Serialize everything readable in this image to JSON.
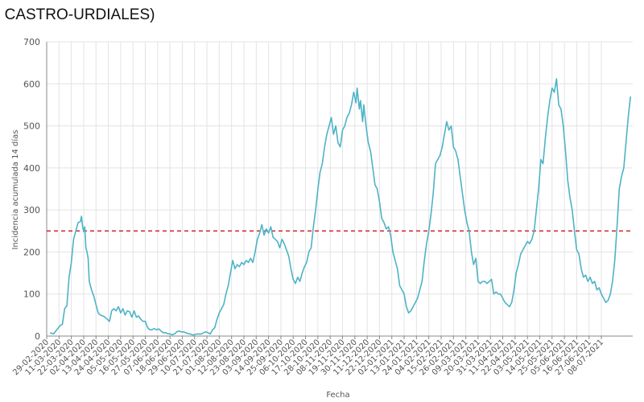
{
  "chart_data": {
    "type": "line",
    "title": "- CASTRO-URDIALES)",
    "xlabel": "Fecha",
    "ylabel": "Incidencia acumulada 14 días",
    "ylim": [
      0,
      700
    ],
    "yticks": [
      "0",
      "100",
      "200",
      "300",
      "400",
      "500",
      "600",
      "700"
    ],
    "grid": true,
    "colors": {
      "line": "#4db3c6",
      "threshold": "#d62728",
      "grid": "#e3e3e3",
      "axis": "#888888"
    },
    "threshold": {
      "value": 250,
      "style": "dashed"
    },
    "x_tick_labels": [
      "29-02-2020",
      "11-03-2020",
      "22-03-2020",
      "02-04-2020",
      "13-04-2020",
      "24-04-2020",
      "05-05-2020",
      "16-05-2020",
      "27-05-2020",
      "07-06-2020",
      "18-06-2020",
      "29-06-2020",
      "10-07-2020",
      "21-07-2020",
      "01-08-2020",
      "12-08-2020",
      "23-08-2020",
      "03-09-2020",
      "14-09-2020",
      "25-09-2020",
      "06-10-2020",
      "17-10-2020",
      "28-10-2020",
      "08-11-2020",
      "19-11-2020",
      "30-11-2020",
      "11-12-2020",
      "22-12-2020",
      "02-01-2021",
      "13-01-2021",
      "24-01-2021",
      "04-02-2021",
      "15-02-2021",
      "26-02-2021",
      "09-03-2021",
      "20-03-2021",
      "31-03-2021",
      "11-04-2021",
      "22-04-2021",
      "03-05-2021",
      "14-05-2021",
      "25-05-2021",
      "05-06-2021",
      "16-06-2021",
      "27-06-2021",
      "08-07-2021"
    ],
    "series": [
      {
        "points": [
          [
            "2020-03-03",
            8
          ],
          [
            "2020-03-06",
            5
          ],
          [
            "2020-03-09",
            15
          ],
          [
            "2020-03-12",
            25
          ],
          [
            "2020-03-14",
            28
          ],
          [
            "2020-03-16",
            65
          ],
          [
            "2020-03-18",
            72
          ],
          [
            "2020-03-20",
            140
          ],
          [
            "2020-03-22",
            175
          ],
          [
            "2020-03-24",
            230
          ],
          [
            "2020-03-26",
            250
          ],
          [
            "2020-03-28",
            270
          ],
          [
            "2020-03-30",
            272
          ],
          [
            "2020-03-31",
            285
          ],
          [
            "2020-04-01",
            262
          ],
          [
            "2020-04-02",
            248
          ],
          [
            "2020-04-03",
            260
          ],
          [
            "2020-04-04",
            210
          ],
          [
            "2020-04-05",
            200
          ],
          [
            "2020-04-06",
            185
          ],
          [
            "2020-04-07",
            130
          ],
          [
            "2020-04-09",
            110
          ],
          [
            "2020-04-11",
            95
          ],
          [
            "2020-04-13",
            75
          ],
          [
            "2020-04-15",
            55
          ],
          [
            "2020-04-17",
            50
          ],
          [
            "2020-04-19",
            48
          ],
          [
            "2020-04-21",
            45
          ],
          [
            "2020-04-23",
            40
          ],
          [
            "2020-04-25",
            35
          ],
          [
            "2020-04-27",
            60
          ],
          [
            "2020-04-29",
            65
          ],
          [
            "2020-05-01",
            60
          ],
          [
            "2020-05-03",
            70
          ],
          [
            "2020-05-05",
            55
          ],
          [
            "2020-05-07",
            65
          ],
          [
            "2020-05-09",
            50
          ],
          [
            "2020-05-11",
            60
          ],
          [
            "2020-05-13",
            58
          ],
          [
            "2020-05-15",
            45
          ],
          [
            "2020-05-17",
            60
          ],
          [
            "2020-05-19",
            45
          ],
          [
            "2020-05-21",
            48
          ],
          [
            "2020-05-23",
            40
          ],
          [
            "2020-05-25",
            35
          ],
          [
            "2020-05-27",
            35
          ],
          [
            "2020-05-29",
            20
          ],
          [
            "2020-05-31",
            15
          ],
          [
            "2020-06-02",
            15
          ],
          [
            "2020-06-04",
            18
          ],
          [
            "2020-06-06",
            15
          ],
          [
            "2020-06-08",
            17
          ],
          [
            "2020-06-10",
            12
          ],
          [
            "2020-06-12",
            8
          ],
          [
            "2020-06-14",
            8
          ],
          [
            "2020-06-16",
            6
          ],
          [
            "2020-06-18",
            5
          ],
          [
            "2020-06-20",
            3
          ],
          [
            "2020-06-22",
            5
          ],
          [
            "2020-06-24",
            10
          ],
          [
            "2020-06-26",
            12
          ],
          [
            "2020-06-28",
            10
          ],
          [
            "2020-06-30",
            10
          ],
          [
            "2020-07-02",
            8
          ],
          [
            "2020-07-04",
            6
          ],
          [
            "2020-07-06",
            5
          ],
          [
            "2020-07-08",
            3
          ],
          [
            "2020-07-10",
            3
          ],
          [
            "2020-07-12",
            5
          ],
          [
            "2020-07-14",
            5
          ],
          [
            "2020-07-16",
            5
          ],
          [
            "2020-07-18",
            8
          ],
          [
            "2020-07-20",
            10
          ],
          [
            "2020-07-22",
            8
          ],
          [
            "2020-07-24",
            5
          ],
          [
            "2020-07-26",
            15
          ],
          [
            "2020-07-28",
            20
          ],
          [
            "2020-07-30",
            40
          ],
          [
            "2020-08-01",
            55
          ],
          [
            "2020-08-03",
            65
          ],
          [
            "2020-08-05",
            75
          ],
          [
            "2020-08-07",
            100
          ],
          [
            "2020-08-09",
            120
          ],
          [
            "2020-08-11",
            150
          ],
          [
            "2020-08-13",
            180
          ],
          [
            "2020-08-15",
            160
          ],
          [
            "2020-08-17",
            170
          ],
          [
            "2020-08-19",
            165
          ],
          [
            "2020-08-21",
            175
          ],
          [
            "2020-08-23",
            170
          ],
          [
            "2020-08-25",
            180
          ],
          [
            "2020-08-27",
            175
          ],
          [
            "2020-08-29",
            185
          ],
          [
            "2020-08-31",
            175
          ],
          [
            "2020-09-02",
            200
          ],
          [
            "2020-09-04",
            230
          ],
          [
            "2020-09-06",
            245
          ],
          [
            "2020-09-08",
            265
          ],
          [
            "2020-09-10",
            240
          ],
          [
            "2020-09-12",
            255
          ],
          [
            "2020-09-14",
            245
          ],
          [
            "2020-09-16",
            260
          ],
          [
            "2020-09-18",
            235
          ],
          [
            "2020-09-20",
            230
          ],
          [
            "2020-09-22",
            225
          ],
          [
            "2020-09-24",
            210
          ],
          [
            "2020-09-26",
            230
          ],
          [
            "2020-09-28",
            220
          ],
          [
            "2020-09-30",
            205
          ],
          [
            "2020-10-02",
            190
          ],
          [
            "2020-10-04",
            160
          ],
          [
            "2020-10-06",
            135
          ],
          [
            "2020-10-08",
            125
          ],
          [
            "2020-10-10",
            140
          ],
          [
            "2020-10-12",
            130
          ],
          [
            "2020-10-14",
            150
          ],
          [
            "2020-10-16",
            165
          ],
          [
            "2020-10-18",
            175
          ],
          [
            "2020-10-20",
            200
          ],
          [
            "2020-10-22",
            210
          ],
          [
            "2020-10-24",
            260
          ],
          [
            "2020-10-26",
            300
          ],
          [
            "2020-10-28",
            350
          ],
          [
            "2020-10-30",
            390
          ],
          [
            "2020-11-01",
            410
          ],
          [
            "2020-11-03",
            450
          ],
          [
            "2020-11-05",
            480
          ],
          [
            "2020-11-07",
            500
          ],
          [
            "2020-11-09",
            520
          ],
          [
            "2020-11-11",
            480
          ],
          [
            "2020-11-13",
            500
          ],
          [
            "2020-11-15",
            460
          ],
          [
            "2020-11-17",
            450
          ],
          [
            "2020-11-19",
            490
          ],
          [
            "2020-11-21",
            500
          ],
          [
            "2020-11-23",
            520
          ],
          [
            "2020-11-25",
            530
          ],
          [
            "2020-11-27",
            550
          ],
          [
            "2020-11-29",
            580
          ],
          [
            "2020-12-01",
            555
          ],
          [
            "2020-12-02",
            590
          ],
          [
            "2020-12-04",
            540
          ],
          [
            "2020-12-05",
            560
          ],
          [
            "2020-12-07",
            510
          ],
          [
            "2020-12-08",
            550
          ],
          [
            "2020-12-10",
            500
          ],
          [
            "2020-12-12",
            460
          ],
          [
            "2020-12-14",
            440
          ],
          [
            "2020-12-16",
            400
          ],
          [
            "2020-12-18",
            360
          ],
          [
            "2020-12-20",
            350
          ],
          [
            "2020-12-22",
            320
          ],
          [
            "2020-12-24",
            280
          ],
          [
            "2020-12-26",
            270
          ],
          [
            "2020-12-28",
            255
          ],
          [
            "2020-12-30",
            260
          ],
          [
            "2021-01-01",
            240
          ],
          [
            "2021-01-03",
            200
          ],
          [
            "2021-01-05",
            180
          ],
          [
            "2021-01-07",
            160
          ],
          [
            "2021-01-09",
            120
          ],
          [
            "2021-01-11",
            110
          ],
          [
            "2021-01-13",
            100
          ],
          [
            "2021-01-15",
            70
          ],
          [
            "2021-01-17",
            55
          ],
          [
            "2021-01-19",
            60
          ],
          [
            "2021-01-21",
            70
          ],
          [
            "2021-01-23",
            80
          ],
          [
            "2021-01-25",
            90
          ],
          [
            "2021-01-27",
            110
          ],
          [
            "2021-01-29",
            130
          ],
          [
            "2021-01-31",
            180
          ],
          [
            "2021-02-02",
            220
          ],
          [
            "2021-02-04",
            250
          ],
          [
            "2021-02-06",
            290
          ],
          [
            "2021-02-08",
            340
          ],
          [
            "2021-02-10",
            410
          ],
          [
            "2021-02-12",
            420
          ],
          [
            "2021-02-14",
            430
          ],
          [
            "2021-02-16",
            450
          ],
          [
            "2021-02-18",
            480
          ],
          [
            "2021-02-20",
            510
          ],
          [
            "2021-02-22",
            490
          ],
          [
            "2021-02-24",
            500
          ],
          [
            "2021-02-26",
            450
          ],
          [
            "2021-02-28",
            440
          ],
          [
            "2021-03-02",
            420
          ],
          [
            "2021-03-04",
            380
          ],
          [
            "2021-03-06",
            340
          ],
          [
            "2021-03-08",
            300
          ],
          [
            "2021-03-10",
            270
          ],
          [
            "2021-03-12",
            250
          ],
          [
            "2021-03-14",
            200
          ],
          [
            "2021-03-16",
            170
          ],
          [
            "2021-03-18",
            185
          ],
          [
            "2021-03-20",
            130
          ],
          [
            "2021-03-22",
            125
          ],
          [
            "2021-03-24",
            130
          ],
          [
            "2021-03-26",
            130
          ],
          [
            "2021-03-28",
            125
          ],
          [
            "2021-03-30",
            130
          ],
          [
            "2021-04-01",
            135
          ],
          [
            "2021-04-03",
            100
          ],
          [
            "2021-04-05",
            105
          ],
          [
            "2021-04-07",
            100
          ],
          [
            "2021-04-09",
            100
          ],
          [
            "2021-04-11",
            90
          ],
          [
            "2021-04-13",
            80
          ],
          [
            "2021-04-15",
            75
          ],
          [
            "2021-04-17",
            70
          ],
          [
            "2021-04-19",
            80
          ],
          [
            "2021-04-21",
            110
          ],
          [
            "2021-04-23",
            150
          ],
          [
            "2021-04-25",
            170
          ],
          [
            "2021-04-27",
            195
          ],
          [
            "2021-04-29",
            205
          ],
          [
            "2021-05-01",
            215
          ],
          [
            "2021-05-03",
            225
          ],
          [
            "2021-05-05",
            220
          ],
          [
            "2021-05-07",
            230
          ],
          [
            "2021-05-09",
            250
          ],
          [
            "2021-05-11",
            300
          ],
          [
            "2021-05-13",
            350
          ],
          [
            "2021-05-15",
            420
          ],
          [
            "2021-05-17",
            410
          ],
          [
            "2021-05-19",
            470
          ],
          [
            "2021-05-21",
            520
          ],
          [
            "2021-05-23",
            560
          ],
          [
            "2021-05-25",
            590
          ],
          [
            "2021-05-27",
            580
          ],
          [
            "2021-05-29",
            612
          ],
          [
            "2021-05-31",
            550
          ],
          [
            "2021-06-02",
            540
          ],
          [
            "2021-06-04",
            500
          ],
          [
            "2021-06-06",
            440
          ],
          [
            "2021-06-08",
            370
          ],
          [
            "2021-06-10",
            330
          ],
          [
            "2021-06-12",
            300
          ],
          [
            "2021-06-14",
            250
          ],
          [
            "2021-06-16",
            205
          ],
          [
            "2021-06-18",
            195
          ],
          [
            "2021-06-20",
            160
          ],
          [
            "2021-06-22",
            140
          ],
          [
            "2021-06-24",
            145
          ],
          [
            "2021-06-26",
            130
          ],
          [
            "2021-06-28",
            140
          ],
          [
            "2021-06-30",
            125
          ],
          [
            "2021-07-02",
            130
          ],
          [
            "2021-07-04",
            110
          ],
          [
            "2021-07-06",
            115
          ],
          [
            "2021-07-08",
            100
          ],
          [
            "2021-07-10",
            90
          ],
          [
            "2021-07-12",
            80
          ],
          [
            "2021-07-14",
            85
          ],
          [
            "2021-07-16",
            100
          ],
          [
            "2021-07-18",
            130
          ],
          [
            "2021-07-20",
            180
          ],
          [
            "2021-07-22",
            260
          ],
          [
            "2021-07-24",
            350
          ],
          [
            "2021-07-26",
            380
          ],
          [
            "2021-07-28",
            400
          ],
          [
            "2021-07-30",
            460
          ],
          [
            "2021-08-01",
            520
          ],
          [
            "2021-08-03",
            570
          ]
        ]
      }
    ]
  }
}
